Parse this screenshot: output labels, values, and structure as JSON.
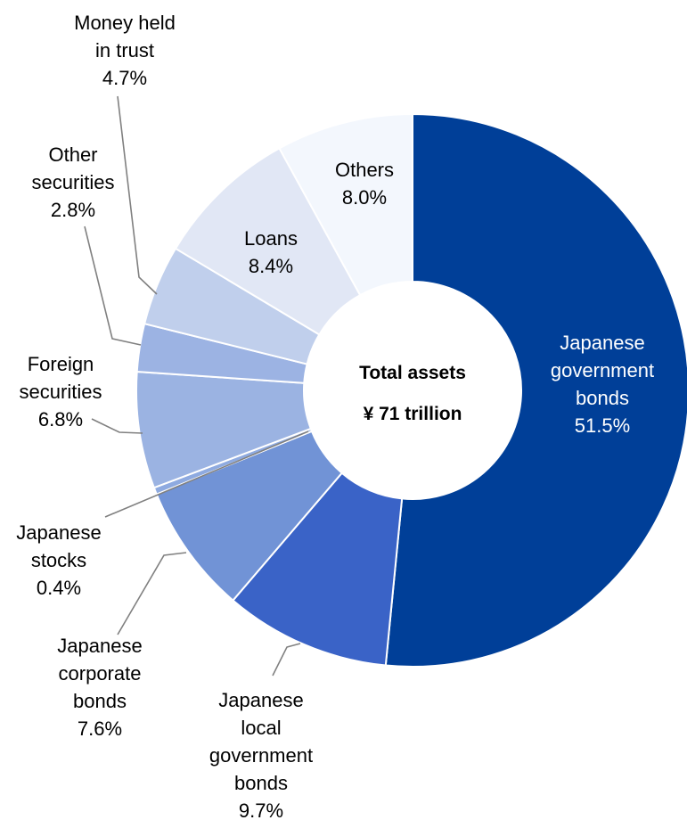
{
  "chart_data": {
    "type": "pie",
    "title": "",
    "center_label": [
      "Total assets",
      "¥ 71 trillion"
    ],
    "series": [
      {
        "values": [
          51.5,
          9.7,
          7.6,
          0.4,
          6.8,
          2.8,
          4.7,
          8.4,
          8.0
        ],
        "categories": [
          "Japanese government bonds",
          "Japanese local government bonds",
          "Japanese corporate bonds",
          "Japanese stocks",
          "Foreign securities",
          "Other securities",
          "Money held in trust",
          "Loans",
          "Others"
        ]
      }
    ],
    "value_labels": [
      "51.5%",
      "9.7%",
      "7.6%",
      "0.4%",
      "6.8%",
      "2.8%",
      "4.7%",
      "8.4%",
      "8.0%"
    ],
    "category_lines": [
      [
        "Japanese",
        "government",
        "bonds"
      ],
      [
        "Japanese",
        "local",
        "government",
        "bonds"
      ],
      [
        "Japanese",
        "corporate",
        "bonds"
      ],
      [
        "Japanese",
        "stocks"
      ],
      [
        "Foreign",
        "securities"
      ],
      [
        "Other",
        "securities"
      ],
      [
        "Money held",
        "in trust"
      ],
      [
        "Loans"
      ],
      [
        "Others"
      ]
    ],
    "colors": [
      "#003f98",
      "#3a63c7",
      "#7193d6",
      "#8eaae0",
      "#9bb3e2",
      "#9cb3e3",
      "#c0cfec",
      "#e1e7f5",
      "#f3f7fd"
    ],
    "label_colors": [
      "#ffffff",
      "#000000",
      "#000000",
      "#000000",
      "#000000",
      "#000000",
      "#000000",
      "#000000",
      "#000000"
    ],
    "start_angle_deg": 0,
    "direction": "clockwise",
    "donut": true
  }
}
